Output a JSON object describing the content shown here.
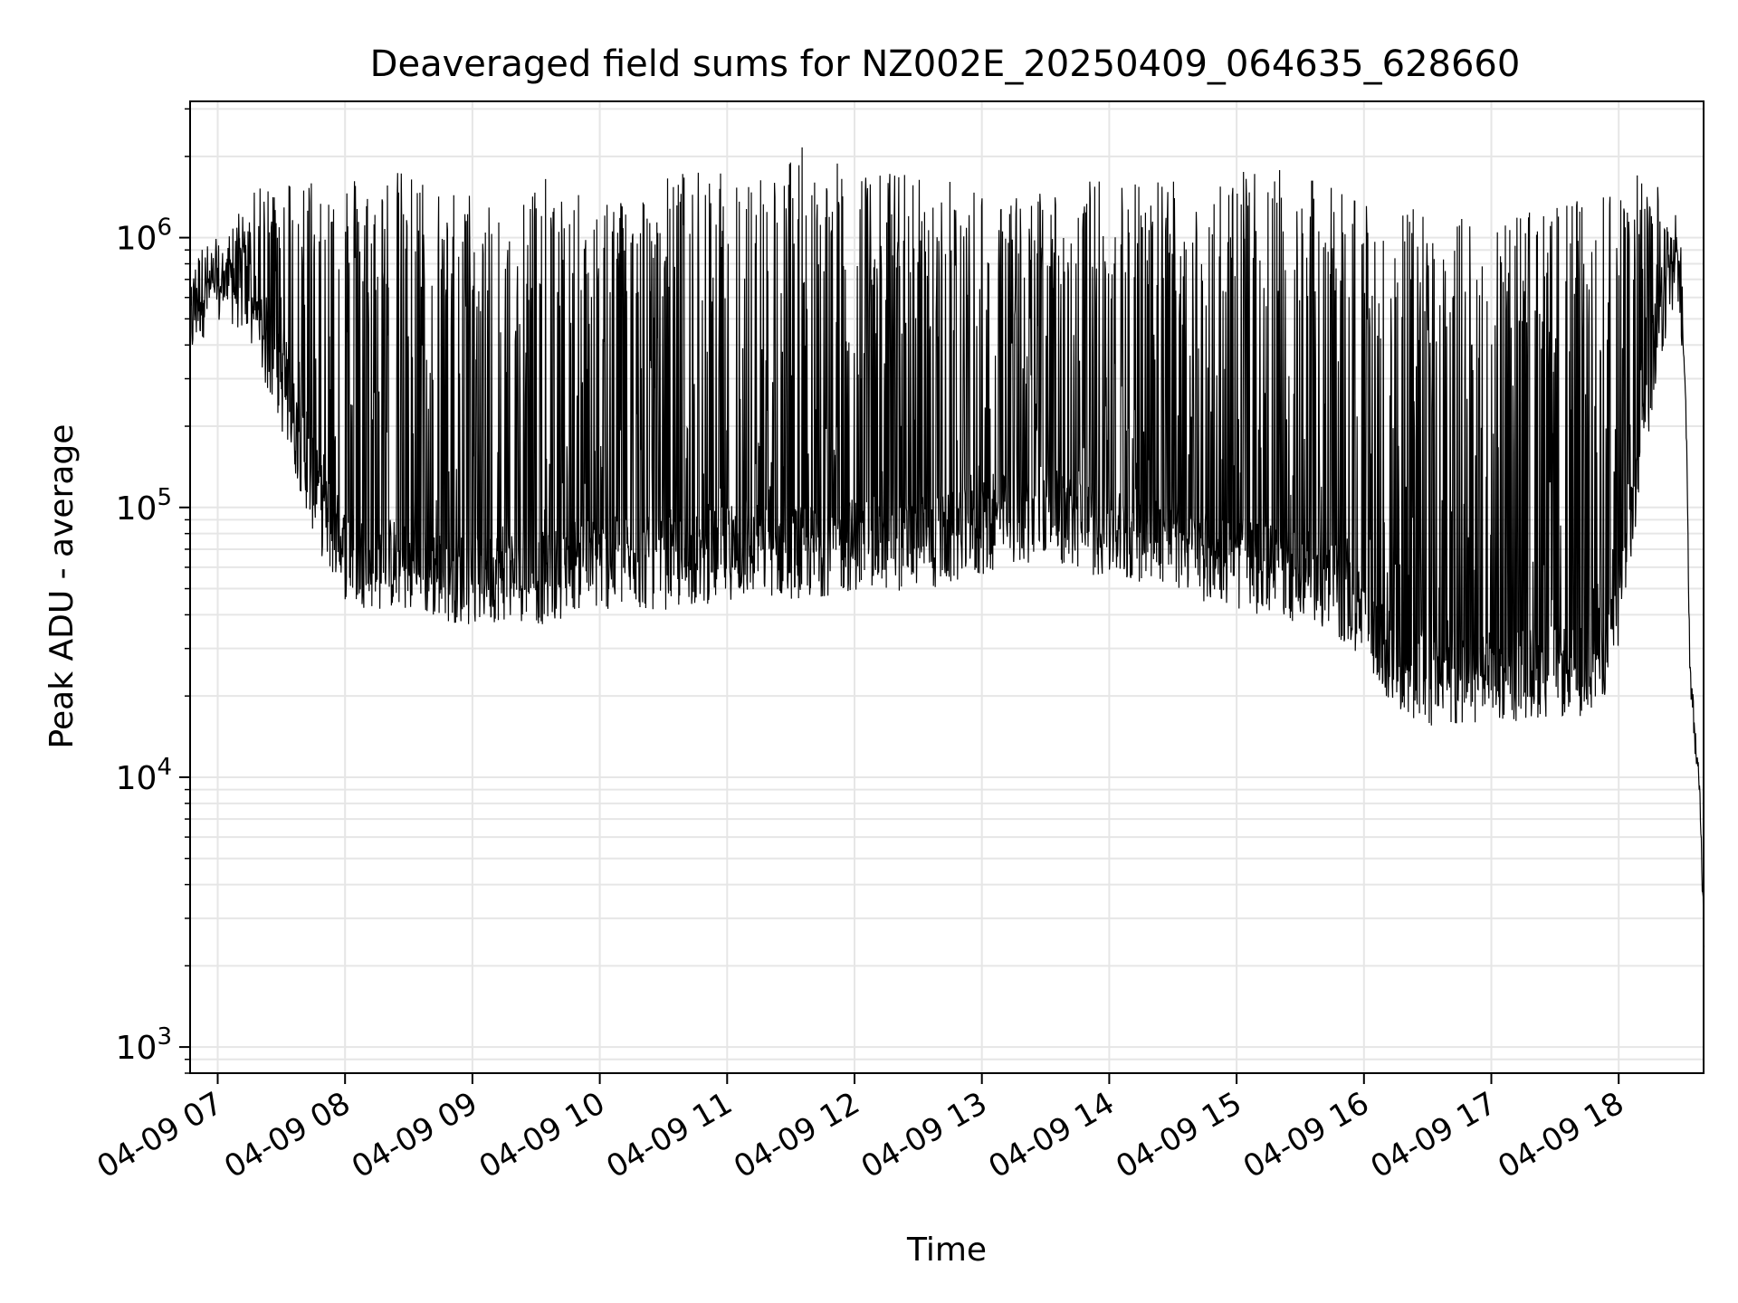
{
  "colors": {
    "line": "#000000",
    "grid": "#e6e6e6",
    "axes": "#000000",
    "background": "#ffffff"
  },
  "chart_data": {
    "type": "line",
    "title": "Deaveraged field sums for NZ002E_20250409_064635_628660",
    "xlabel": "Time",
    "ylabel": "Peak ADU - average",
    "yscale": "log",
    "xlim": [
      "2025-04-09 06:47",
      "2025-04-09 18:40"
    ],
    "ylim": [
      800,
      3200000
    ],
    "grid": {
      "major": true,
      "minor": true
    },
    "x_ticks": [
      "04-09 07",
      "04-09 08",
      "04-09 09",
      "04-09 10",
      "04-09 11",
      "04-09 12",
      "04-09 13",
      "04-09 14",
      "04-09 15",
      "04-09 16",
      "04-09 17",
      "04-09 18"
    ],
    "x_tick_hours": [
      7,
      8,
      9,
      10,
      11,
      12,
      13,
      14,
      15,
      16,
      17,
      18
    ],
    "y_ticks": [
      {
        "base": "10",
        "exp": "3",
        "value": 1000
      },
      {
        "base": "10",
        "exp": "4",
        "value": 10000
      },
      {
        "base": "10",
        "exp": "5",
        "value": 100000
      },
      {
        "base": "10",
        "exp": "6",
        "value": 1000000
      }
    ],
    "series": [
      {
        "note_points": "hour-of-day vs peak ADU (baseline floor and burst peaks)",
        "x": [
          6.78,
          6.85,
          6.95,
          7.05,
          7.12,
          7.2,
          7.3,
          7.45,
          7.6,
          7.8,
          8.0,
          8.2,
          8.4,
          8.6,
          8.8,
          9.0,
          9.2,
          9.4,
          9.6,
          9.8,
          10.0,
          10.3,
          10.6,
          11.0,
          11.3,
          11.6,
          12.0,
          12.3,
          12.6,
          12.9,
          13.2,
          13.5,
          13.8,
          14.1,
          14.4,
          14.7,
          15.0,
          15.3,
          15.6,
          15.9,
          16.1,
          16.3,
          16.5,
          16.8,
          17.1,
          17.4,
          17.7,
          17.95,
          18.1,
          18.25,
          18.4,
          18.45,
          18.5,
          18.53,
          18.56,
          18.6,
          18.64,
          18.67
        ],
        "floor": [
          420000,
          550000,
          580000,
          600000,
          620000,
          580000,
          450000,
          300000,
          180000,
          90000,
          60000,
          55000,
          55000,
          52000,
          50000,
          48000,
          50000,
          50000,
          48000,
          55000,
          55000,
          55000,
          55000,
          60000,
          62000,
          60000,
          65000,
          65000,
          65000,
          70000,
          80000,
          85000,
          75000,
          70000,
          70000,
          60000,
          55000,
          52000,
          48000,
          40000,
          28000,
          22000,
          20000,
          20000,
          21000,
          22000,
          22000,
          28000,
          80000,
          280000,
          650000,
          800000,
          500000,
          200000,
          25000,
          14000,
          8000,
          2500
        ],
        "peak": [
          650000,
          700000,
          700000,
          760000,
          1200000,
          1300000,
          1500000,
          1650000,
          1750000,
          1800000,
          1800000,
          1700000,
          1800000,
          1700000,
          1600000,
          1500000,
          1550000,
          1700000,
          1650000,
          1450000,
          1500000,
          1500000,
          1800000,
          1750000,
          1800000,
          2200000,
          1750000,
          1800000,
          1700000,
          1600000,
          1400000,
          1550000,
          1650000,
          1700000,
          1750000,
          1800000,
          1750000,
          1800000,
          1650000,
          1500000,
          1400000,
          1300000,
          1250000,
          1200000,
          1250000,
          1300000,
          1400000,
          1700000,
          1700000,
          1850000,
          1150000,
          1050000,
          700000,
          300000,
          25000,
          18000,
          9000,
          2500
        ]
      }
    ]
  }
}
